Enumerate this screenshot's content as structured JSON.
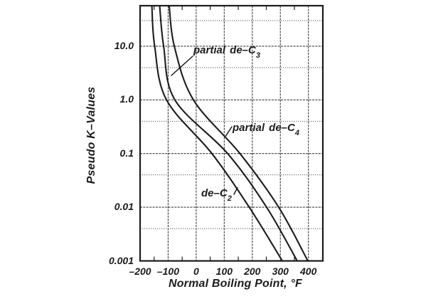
{
  "figure": {
    "background": "#ffffff",
    "ink": "#1c1c1c",
    "grid_color": "#3c3c3c"
  },
  "chart_data": {
    "type": "line",
    "title": "",
    "xlabel": "Normal Boiling Point, °F",
    "ylabel": "Pseudo K–Values",
    "x_axis": {
      "scale": "linear",
      "min": -200,
      "max": 450,
      "ticks": [
        -200,
        -100,
        0,
        100,
        200,
        300,
        400
      ],
      "tick_labels": [
        "–200",
        "–100",
        "0",
        "100",
        "200",
        "300",
        "400"
      ],
      "minor_tick_step": 50
    },
    "y_axis": {
      "scale": "log",
      "min": 0.001,
      "max": 55,
      "ticks": [
        10,
        1,
        0.1,
        0.01,
        0.001
      ],
      "tick_labels": [
        "10.0",
        "1.0",
        "0.1",
        "0.01",
        "0.001"
      ],
      "minor_gridlines": [
        30,
        4,
        0.4,
        0.04,
        0.004
      ]
    },
    "grid": "on",
    "series": [
      {
        "name": "de-C2",
        "points": [
          {
            "k": 55,
            "bp_f": -158
          },
          {
            "k": 10,
            "bp_f": -148
          },
          {
            "k": 1,
            "bp_f": -106
          },
          {
            "k": 0.1,
            "bp_f": 56
          },
          {
            "k": 0.01,
            "bp_f": 189
          },
          {
            "k": 0.001,
            "bp_f": 307
          }
        ]
      },
      {
        "name": "partial de-C3",
        "points": [
          {
            "k": 55,
            "bp_f": -130
          },
          {
            "k": 10,
            "bp_f": -116
          },
          {
            "k": 1,
            "bp_f": -76
          },
          {
            "k": 0.1,
            "bp_f": 112
          },
          {
            "k": 0.01,
            "bp_f": 251
          },
          {
            "k": 0.001,
            "bp_f": 360
          }
        ]
      },
      {
        "name": "partial de-C4",
        "points": [
          {
            "k": 55,
            "bp_f": -96
          },
          {
            "k": 10,
            "bp_f": -78
          },
          {
            "k": 1,
            "bp_f": -10
          },
          {
            "k": 0.1,
            "bp_f": 156
          },
          {
            "k": 0.01,
            "bp_f": 294
          },
          {
            "k": 0.001,
            "bp_f": 398
          }
        ]
      }
    ]
  },
  "annotations": [
    {
      "prefix": "partial de–C",
      "sub": "3",
      "series": "partial de-C3"
    },
    {
      "prefix": "partial de–C",
      "sub": "4",
      "series": "partial de-C4"
    },
    {
      "prefix": "de–C",
      "sub": "2",
      "series": "de-C2"
    }
  ]
}
